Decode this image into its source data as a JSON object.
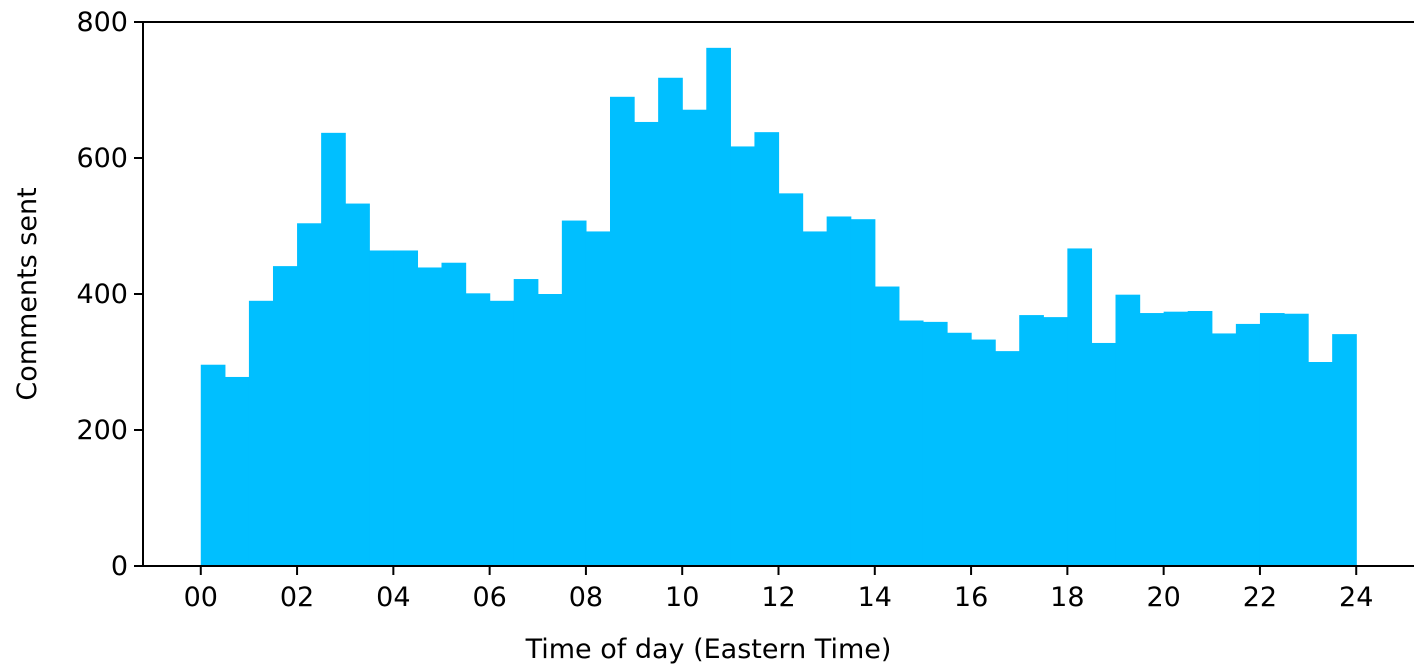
{
  "chart_data": {
    "type": "bar",
    "title": "",
    "xlabel": "Time of day (Eastern Time)",
    "ylabel": "Comments sent",
    "xlim": [
      -1.2,
      25.2
    ],
    "ylim": [
      0,
      800
    ],
    "grid": false,
    "bar_color": "#00BFFF",
    "bin_width_hours": 0.5,
    "x_ticks": [
      {
        "value": 0,
        "label": "00"
      },
      {
        "value": 2,
        "label": "02"
      },
      {
        "value": 4,
        "label": "04"
      },
      {
        "value": 6,
        "label": "06"
      },
      {
        "value": 8,
        "label": "08"
      },
      {
        "value": 10,
        "label": "10"
      },
      {
        "value": 12,
        "label": "12"
      },
      {
        "value": 14,
        "label": "14"
      },
      {
        "value": 16,
        "label": "16"
      },
      {
        "value": 18,
        "label": "18"
      },
      {
        "value": 20,
        "label": "20"
      },
      {
        "value": 22,
        "label": "22"
      },
      {
        "value": 24,
        "label": "24"
      }
    ],
    "y_ticks": [
      {
        "value": 0,
        "label": "0"
      },
      {
        "value": 200,
        "label": "200"
      },
      {
        "value": 400,
        "label": "400"
      },
      {
        "value": 600,
        "label": "600"
      },
      {
        "value": 800,
        "label": "800"
      }
    ],
    "bin_starts": [
      0,
      0.5,
      1,
      1.5,
      2,
      2.5,
      3,
      3.5,
      4,
      4.5,
      5,
      5.5,
      6,
      6.5,
      7,
      7.5,
      8,
      8.5,
      9,
      9.5,
      10,
      10.5,
      11,
      11.5,
      12,
      12.5,
      13,
      13.5,
      14,
      14.5,
      15,
      15.5,
      16,
      16.5,
      17,
      17.5,
      18,
      18.5,
      19,
      19.5,
      20,
      20.5,
      21,
      21.5,
      22,
      22.5,
      23,
      23.5
    ],
    "values": [
      296,
      278,
      390,
      441,
      504,
      637,
      533,
      464,
      464,
      439,
      446,
      401,
      390,
      422,
      400,
      508,
      492,
      690,
      653,
      718,
      671,
      762,
      617,
      638,
      548,
      492,
      514,
      510,
      411,
      361,
      359,
      343,
      333,
      316,
      369,
      366,
      467,
      328,
      399,
      372,
      374,
      375,
      342,
      356,
      372,
      371,
      300,
      341
    ]
  }
}
